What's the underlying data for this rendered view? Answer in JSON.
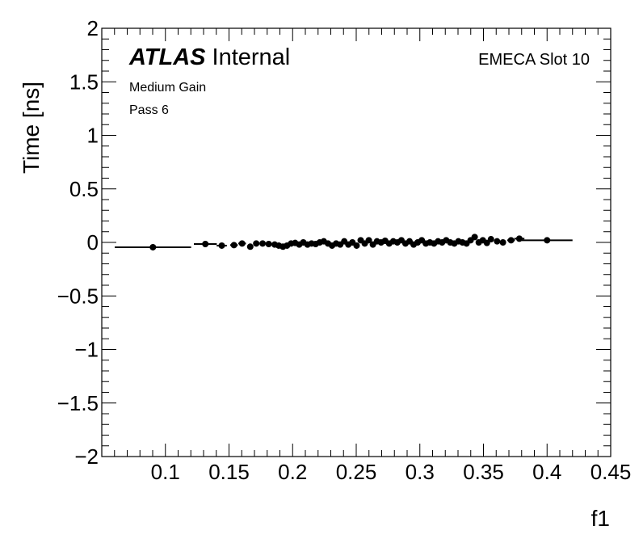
{
  "chart_data": {
    "type": "scatter",
    "title": "",
    "xlabel": "f1",
    "ylabel": "Time [ns]",
    "xlim": [
      0.05,
      0.45
    ],
    "ylim": [
      -2,
      2
    ],
    "x_ticks": [
      {
        "value": 0.1,
        "label": "0.1"
      },
      {
        "value": 0.15,
        "label": "0.15"
      },
      {
        "value": 0.2,
        "label": "0.2"
      },
      {
        "value": 0.25,
        "label": "0.25"
      },
      {
        "value": 0.3,
        "label": "0.3"
      },
      {
        "value": 0.35,
        "label": "0.35"
      },
      {
        "value": 0.4,
        "label": "0.4"
      },
      {
        "value": 0.45,
        "label": "0.45"
      }
    ],
    "y_ticks": [
      {
        "value": 2,
        "label": "2"
      },
      {
        "value": 1.5,
        "label": "1.5"
      },
      {
        "value": 1,
        "label": "1"
      },
      {
        "value": 0.5,
        "label": "0.5"
      },
      {
        "value": 0,
        "label": "0"
      },
      {
        "value": -0.5,
        "label": "−0.5"
      },
      {
        "value": -1,
        "label": "−1"
      },
      {
        "value": -1.5,
        "label": "−1.5"
      },
      {
        "value": -2,
        "label": "−2"
      }
    ],
    "annotations": {
      "atlas_label": "ATLAS",
      "atlas_status": "Internal",
      "gain": "Medium Gain",
      "pass": "Pass 6",
      "slot": "EMECA Slot 10"
    },
    "grid": false,
    "legend": "none",
    "marker_color": "#000000",
    "series": [
      {
        "points": [
          {
            "x": 0.0902,
            "y": -0.045,
            "xerr": 0.03
          },
          {
            "x": 0.1314,
            "y": -0.015,
            "xerr": 0.009
          },
          {
            "x": 0.1443,
            "y": -0.03,
            "xerr": 0.004
          },
          {
            "x": 0.1539,
            "y": -0.025,
            "xerr": 0.003
          },
          {
            "x": 0.1603,
            "y": -0.01,
            "xerr": 0.003
          },
          {
            "x": 0.1667,
            "y": -0.04,
            "xerr": 0.002
          },
          {
            "x": 0.1714,
            "y": -0.01,
            "xerr": 0.002
          },
          {
            "x": 0.1764,
            "y": -0.01,
            "xerr": 0.002
          },
          {
            "x": 0.1812,
            "y": -0.015,
            "xerr": 0.002
          },
          {
            "x": 0.1859,
            "y": -0.02,
            "xerr": 0.002
          },
          {
            "x": 0.1891,
            "y": -0.03,
            "xerr": 0.002
          },
          {
            "x": 0.1924,
            "y": -0.04,
            "xerr": 0.002
          },
          {
            "x": 0.1956,
            "y": -0.03,
            "xerr": 0.002
          },
          {
            "x": 0.1988,
            "y": -0.01,
            "xerr": 0.002
          },
          {
            "x": 0.202,
            "y": -0.005,
            "xerr": 0.002
          },
          {
            "x": 0.2052,
            "y": -0.02,
            "xerr": 0.002
          },
          {
            "x": 0.2084,
            "y": 0.0,
            "xerr": 0.002
          },
          {
            "x": 0.2117,
            "y": -0.02,
            "xerr": 0.002
          },
          {
            "x": 0.2149,
            "y": -0.01,
            "xerr": 0.002
          },
          {
            "x": 0.2181,
            "y": -0.015,
            "xerr": 0.002
          },
          {
            "x": 0.2213,
            "y": 0.0,
            "xerr": 0.002
          },
          {
            "x": 0.2245,
            "y": 0.01,
            "xerr": 0.002
          },
          {
            "x": 0.2278,
            "y": -0.01,
            "xerr": 0.002
          },
          {
            "x": 0.231,
            "y": -0.03,
            "xerr": 0.002
          },
          {
            "x": 0.2342,
            "y": -0.01,
            "xerr": 0.002
          },
          {
            "x": 0.2374,
            "y": -0.02,
            "xerr": 0.002
          },
          {
            "x": 0.2406,
            "y": 0.01,
            "xerr": 0.002
          },
          {
            "x": 0.2438,
            "y": -0.02,
            "xerr": 0.002
          },
          {
            "x": 0.247,
            "y": 0.0,
            "xerr": 0.002
          },
          {
            "x": 0.2503,
            "y": -0.03,
            "xerr": 0.002
          },
          {
            "x": 0.2535,
            "y": 0.02,
            "xerr": 0.002
          },
          {
            "x": 0.2567,
            "y": -0.01,
            "xerr": 0.002
          },
          {
            "x": 0.2599,
            "y": 0.02,
            "xerr": 0.002
          },
          {
            "x": 0.2631,
            "y": -0.02,
            "xerr": 0.002
          },
          {
            "x": 0.2663,
            "y": 0.01,
            "xerr": 0.002
          },
          {
            "x": 0.2695,
            "y": 0.0,
            "xerr": 0.002
          },
          {
            "x": 0.2727,
            "y": 0.015,
            "xerr": 0.002
          },
          {
            "x": 0.2759,
            "y": -0.01,
            "xerr": 0.002
          },
          {
            "x": 0.2791,
            "y": 0.01,
            "xerr": 0.002
          },
          {
            "x": 0.2823,
            "y": 0.0,
            "xerr": 0.002
          },
          {
            "x": 0.2855,
            "y": 0.02,
            "xerr": 0.002
          },
          {
            "x": 0.2887,
            "y": -0.01,
            "xerr": 0.002
          },
          {
            "x": 0.2919,
            "y": 0.01,
            "xerr": 0.002
          },
          {
            "x": 0.2951,
            "y": -0.02,
            "xerr": 0.002
          },
          {
            "x": 0.2983,
            "y": 0.0,
            "xerr": 0.002
          },
          {
            "x": 0.3015,
            "y": 0.02,
            "xerr": 0.002
          },
          {
            "x": 0.3047,
            "y": -0.01,
            "xerr": 0.002
          },
          {
            "x": 0.3079,
            "y": 0.0,
            "xerr": 0.002
          },
          {
            "x": 0.3111,
            "y": -0.01,
            "xerr": 0.002
          },
          {
            "x": 0.3143,
            "y": 0.01,
            "xerr": 0.002
          },
          {
            "x": 0.3175,
            "y": 0.0,
            "xerr": 0.002
          },
          {
            "x": 0.3207,
            "y": 0.02,
            "xerr": 0.002
          },
          {
            "x": 0.3239,
            "y": 0.0,
            "xerr": 0.002
          },
          {
            "x": 0.3271,
            "y": -0.01,
            "xerr": 0.002
          },
          {
            "x": 0.3303,
            "y": 0.01,
            "xerr": 0.002
          },
          {
            "x": 0.3335,
            "y": 0.0,
            "xerr": 0.002
          },
          {
            "x": 0.3367,
            "y": -0.01,
            "xerr": 0.002
          },
          {
            "x": 0.3399,
            "y": 0.02,
            "xerr": 0.002
          },
          {
            "x": 0.3431,
            "y": 0.05,
            "xerr": 0.002
          },
          {
            "x": 0.3463,
            "y": 0.0,
            "xerr": 0.002
          },
          {
            "x": 0.3495,
            "y": 0.02,
            "xerr": 0.002
          },
          {
            "x": 0.3527,
            "y": -0.005,
            "xerr": 0.002
          },
          {
            "x": 0.3559,
            "y": 0.03,
            "xerr": 0.002
          },
          {
            "x": 0.3607,
            "y": 0.01,
            "xerr": 0.002
          },
          {
            "x": 0.3653,
            "y": 0.0,
            "xerr": 0.002
          },
          {
            "x": 0.3717,
            "y": 0.02,
            "xerr": 0.003
          },
          {
            "x": 0.3782,
            "y": 0.035,
            "xerr": 0.004
          },
          {
            "x": 0.4,
            "y": 0.02,
            "xerr": 0.02
          }
        ]
      }
    ]
  }
}
